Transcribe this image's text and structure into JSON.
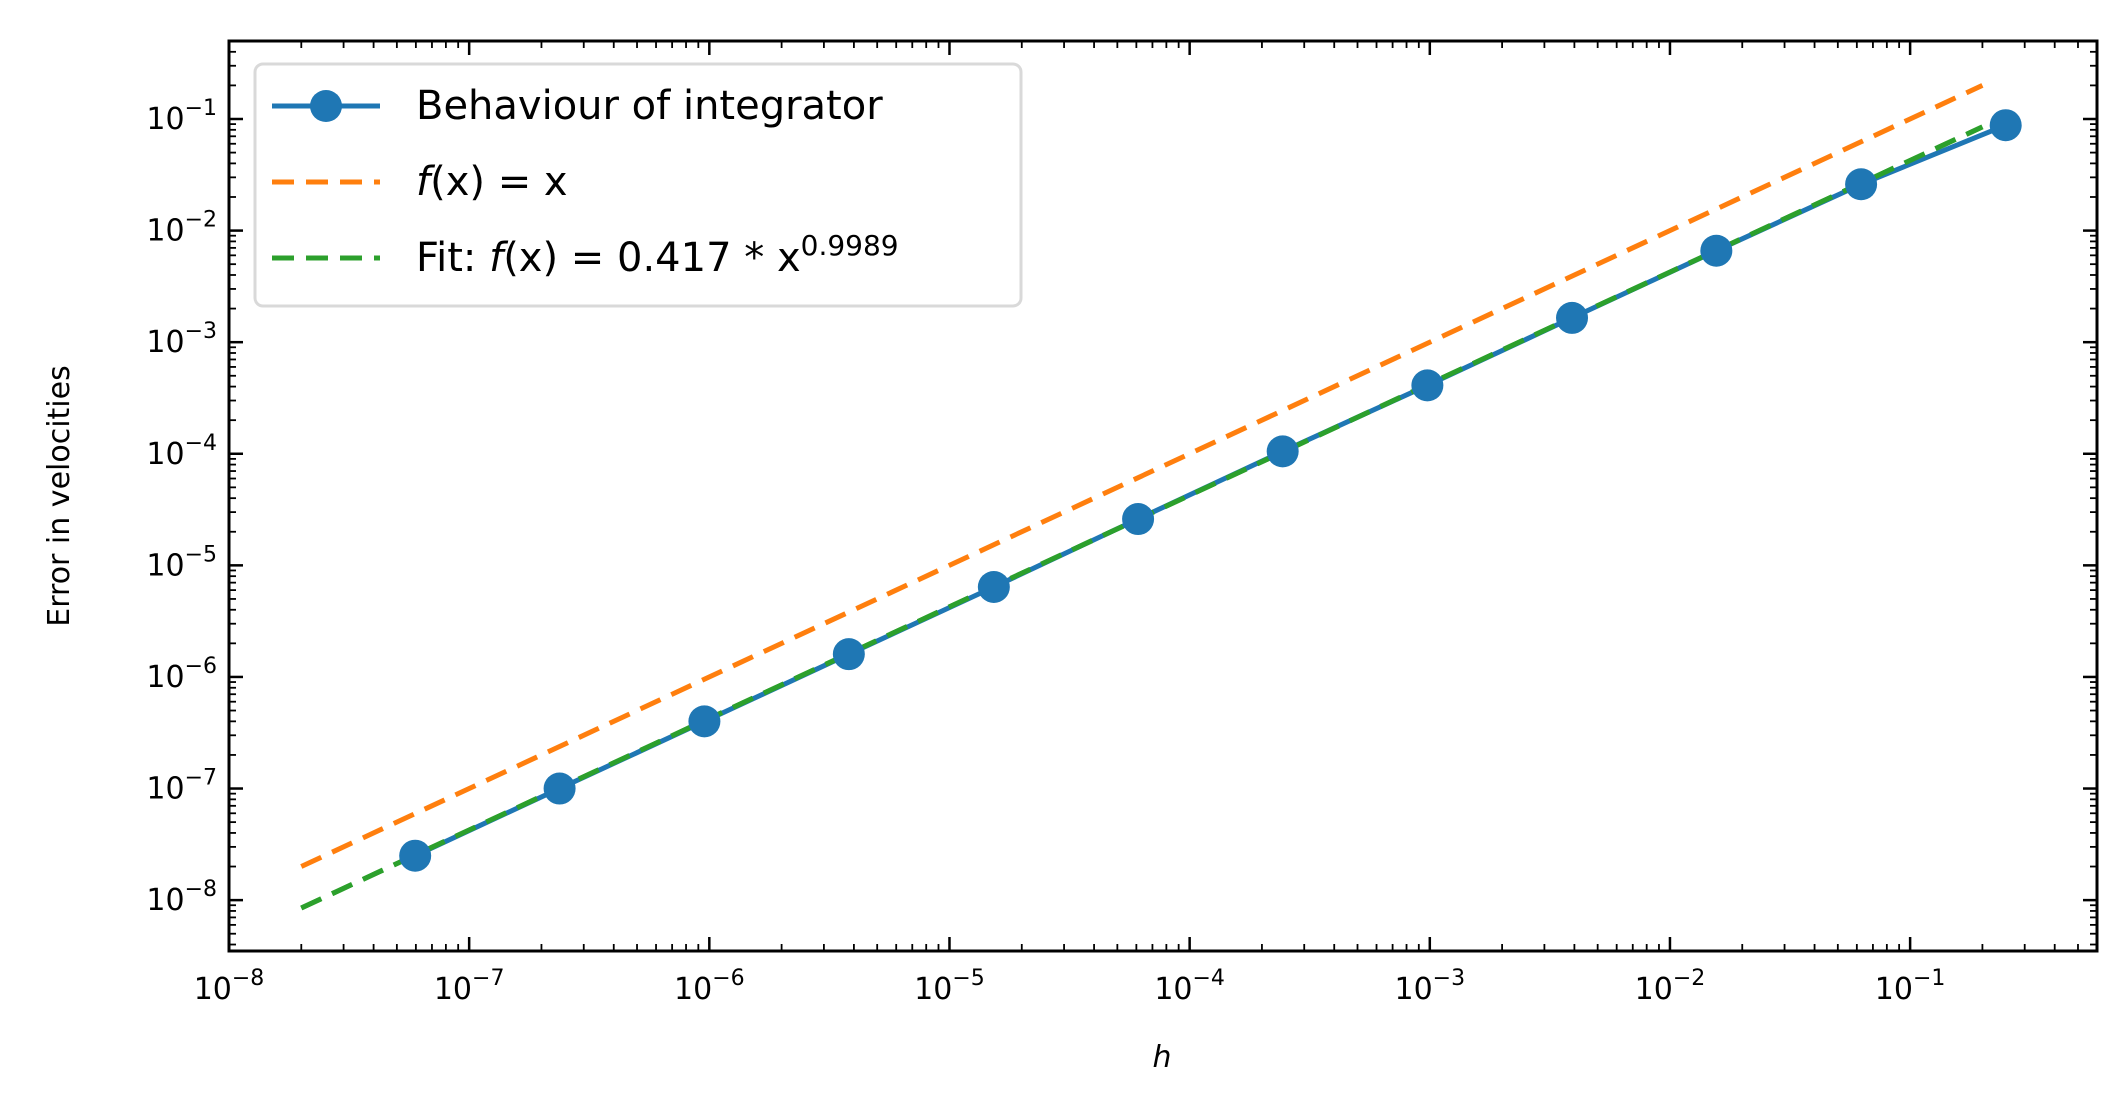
{
  "chart_data": {
    "type": "line",
    "xscale": "log",
    "yscale": "log",
    "xlabel": "h",
    "ylabel": "Error in velocities",
    "xlim": [
      1e-08,
      0.6
    ],
    "ylim": [
      3.5e-09,
      0.5
    ],
    "x_ticks": [
      1e-08,
      1e-07,
      1e-06,
      1e-05,
      0.0001,
      0.001,
      0.01,
      0.1
    ],
    "y_ticks": [
      1e-08,
      1e-07,
      1e-06,
      1e-05,
      0.0001,
      0.001,
      0.01,
      0.1
    ],
    "legend_position": "upper-left",
    "series": [
      {
        "name": "Behaviour of integrator",
        "style": "line-markers",
        "color": "#1f77b4",
        "x": [
          5.96e-08,
          2.38e-07,
          9.54e-07,
          3.81e-06,
          1.53e-05,
          6.1e-05,
          0.000244,
          0.000977,
          0.00391,
          0.0156,
          0.0625,
          0.25
        ],
        "y": [
          2.5e-08,
          1e-07,
          4e-07,
          1.6e-06,
          6.4e-06,
          2.6e-05,
          0.000105,
          0.00041,
          0.00165,
          0.0066,
          0.026,
          0.088
        ]
      },
      {
        "name": "f(x) = x",
        "style": "dashed",
        "color": "#ff7f0e",
        "x": [
          2e-08,
          0.2
        ],
        "y": [
          2e-08,
          0.2
        ]
      },
      {
        "name": "Fit: f(x) = 0.417 * x^0.9989",
        "style": "dashed",
        "color": "#2ca02c",
        "x": [
          2e-08,
          0.2
        ],
        "y": [
          8.5e-09,
          0.085
        ]
      }
    ],
    "legend_entries": [
      {
        "prefix": "Behaviour of integrator",
        "fx": "",
        "mid": "",
        "sup": ""
      },
      {
        "prefix": "",
        "fx": "f",
        "mid": "(x) = x",
        "sup": ""
      },
      {
        "prefix": "Fit: ",
        "fx": "f",
        "mid": "(x) = 0.417 * x",
        "sup": "0.9989"
      }
    ]
  }
}
